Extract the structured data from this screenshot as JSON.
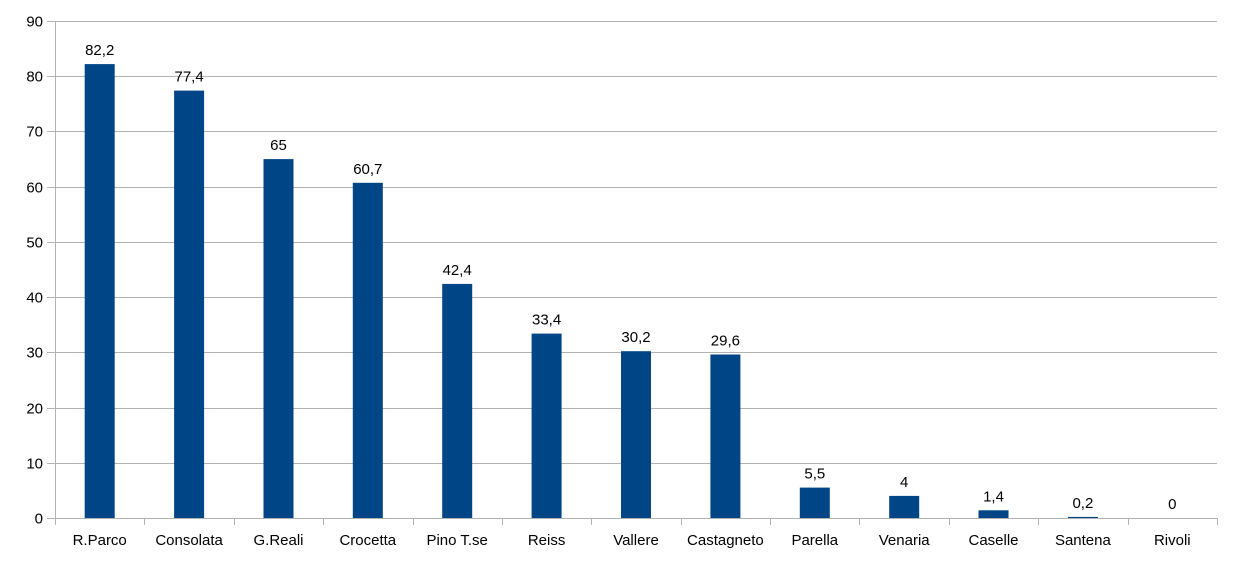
{
  "chart_data": {
    "type": "bar",
    "title": "",
    "xlabel": "",
    "ylabel": "",
    "categories": [
      "R.Parco",
      "Consolata",
      "G.Reali",
      "Crocetta",
      "Pino T.se",
      "Reiss",
      "Vallere",
      "Castagneto",
      "Parella",
      "Venaria",
      "Caselle",
      "Santena",
      "Rivoli"
    ],
    "values": [
      82.2,
      77.4,
      65,
      60.7,
      42.4,
      33.4,
      30.2,
      29.6,
      5.5,
      4,
      1.4,
      0.2,
      0
    ],
    "value_labels": [
      "82,2",
      "77,4",
      "65",
      "60,7",
      "42,4",
      "33,4",
      "30,2",
      "29,6",
      "5,5",
      "4",
      "1,4",
      "0,2",
      "0"
    ],
    "ylim": [
      0,
      90
    ],
    "yticks": [
      0,
      10,
      20,
      30,
      40,
      50,
      60,
      70,
      80,
      90
    ],
    "grid": true,
    "legend": "none",
    "colors": {
      "bar": "#004586",
      "grid": "#b3b3b3",
      "axis": "#b3b3b3"
    }
  }
}
